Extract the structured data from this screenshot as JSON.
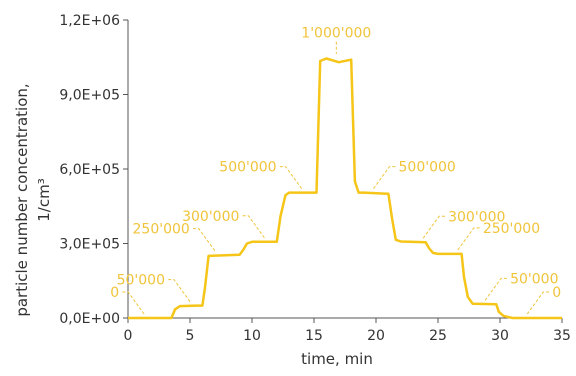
{
  "chart_data": {
    "type": "line",
    "xlabel": "time, min",
    "ylabel_line1": "particle number concentration,",
    "ylabel_line2": "1/cm³",
    "xlim": [
      0,
      35
    ],
    "ylim": [
      0,
      1200000
    ],
    "x_ticks": [
      {
        "value": 0,
        "label": "0"
      },
      {
        "value": 5,
        "label": "5"
      },
      {
        "value": 10,
        "label": "10"
      },
      {
        "value": 15,
        "label": "15"
      },
      {
        "value": 20,
        "label": "20"
      },
      {
        "value": 25,
        "label": "25"
      },
      {
        "value": 30,
        "label": "30"
      },
      {
        "value": 35,
        "label": "35"
      }
    ],
    "y_ticks": [
      {
        "value": 0,
        "label": "0,0E+00"
      },
      {
        "value": 300000,
        "label": "3,0E+05"
      },
      {
        "value": 600000,
        "label": "6,0E+05"
      },
      {
        "value": 900000,
        "label": "9,0E+05"
      },
      {
        "value": 1200000,
        "label": "1,2E+06"
      }
    ],
    "grid": false,
    "line_color": "#F5C518",
    "label_color": "#F0C43A",
    "series": [
      {
        "x": [
          0,
          3.5,
          3.8,
          4.2,
          5.5,
          6.0,
          6.2,
          6.5,
          9.0,
          9.3,
          9.6,
          10.0,
          12.0,
          12.3,
          12.7,
          13.0,
          15.2,
          15.5,
          16.0,
          17.0,
          18.0,
          18.3,
          18.6,
          19.0,
          21.0,
          21.3,
          21.6,
          22.0,
          24.0,
          24.3,
          24.6,
          25.0,
          26.9,
          27.1,
          27.4,
          27.8,
          29.7,
          29.9,
          30.3,
          31.0,
          35.0
        ],
        "y": [
          0,
          0,
          35000,
          48000,
          50000,
          50000,
          120000,
          250000,
          255000,
          275000,
          300000,
          307000,
          307000,
          410000,
          495000,
          505000,
          505000,
          1035000,
          1045000,
          1030000,
          1040000,
          550000,
          505000,
          505000,
          500000,
          400000,
          315000,
          308000,
          305000,
          280000,
          262000,
          258000,
          258000,
          165000,
          85000,
          57000,
          55000,
          25000,
          8000,
          0,
          0
        ]
      }
    ],
    "annotations": [
      {
        "text": "0",
        "x": 1.3,
        "y": 0
      },
      {
        "text": "50'000",
        "x": 5.0,
        "y": 50000
      },
      {
        "text": "250'000",
        "x": 7.0,
        "y": 255000
      },
      {
        "text": "300'000",
        "x": 11.0,
        "y": 307000
      },
      {
        "text": "500'000",
        "x": 14.0,
        "y": 505000
      },
      {
        "text": "1'000'000",
        "x": 16.8,
        "y": 1040000
      },
      {
        "text": "500'000",
        "x": 19.8,
        "y": 505000
      },
      {
        "text": "300'000",
        "x": 23.8,
        "y": 305000
      },
      {
        "text": "250'000",
        "x": 26.6,
        "y": 258000
      },
      {
        "text": "50'000",
        "x": 28.8,
        "y": 55000
      },
      {
        "text": "0",
        "x": 32.2,
        "y": 0
      }
    ]
  }
}
